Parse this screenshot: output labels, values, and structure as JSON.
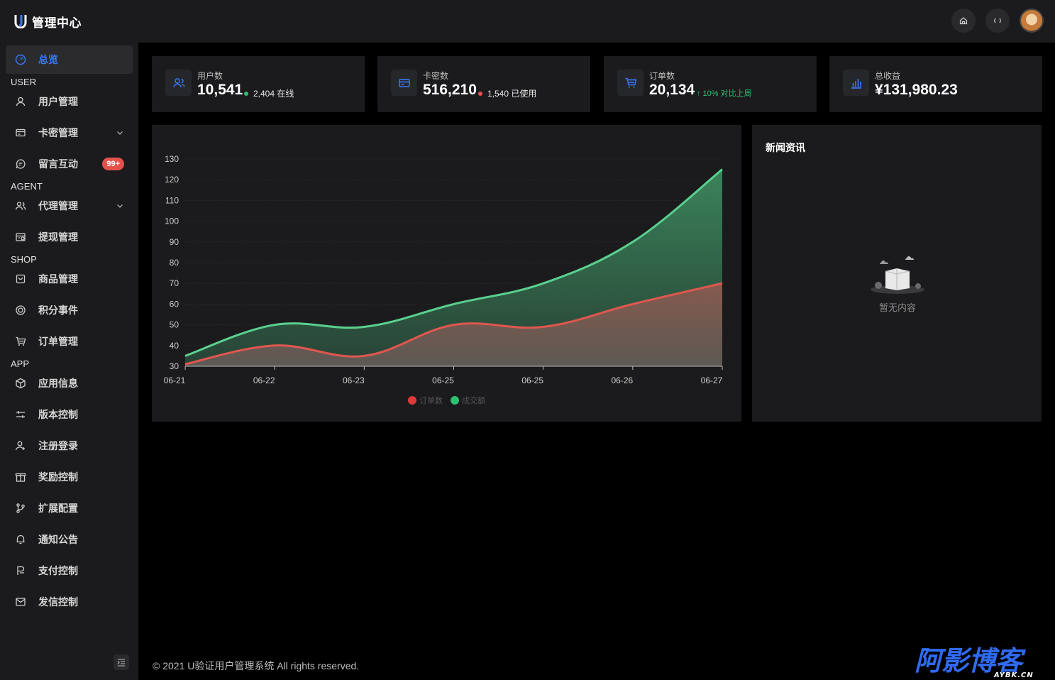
{
  "header": {
    "app_title": "管理中心",
    "logo_icon": "u-logo-icon",
    "home_icon": "home-icon",
    "refresh_icon": "refresh-icon"
  },
  "sidebar": {
    "items": [
      {
        "label": "总览",
        "icon": "dashboard-icon",
        "active": true
      },
      {
        "label": "用户管理",
        "icon": "user-icon"
      },
      {
        "label": "卡密管理",
        "icon": "card-icon",
        "expandable": true
      },
      {
        "label": "留言互动",
        "icon": "chat-icon",
        "badge": "99+"
      },
      {
        "label": "代理管理",
        "icon": "team-icon",
        "expandable": true
      },
      {
        "label": "提现管理",
        "icon": "withdraw-icon"
      },
      {
        "label": "商品管理",
        "icon": "shopping-bag-icon"
      },
      {
        "label": "积分事件",
        "icon": "points-icon"
      },
      {
        "label": "订单管理",
        "icon": "cart-icon"
      },
      {
        "label": "应用信息",
        "icon": "cube-icon"
      },
      {
        "label": "版本控制",
        "icon": "sliders-icon"
      },
      {
        "label": "注册登录",
        "icon": "user-add-icon"
      },
      {
        "label": "奖励控制",
        "icon": "gift-icon"
      },
      {
        "label": "扩展配置",
        "icon": "branch-icon"
      },
      {
        "label": "通知公告",
        "icon": "bell-icon"
      },
      {
        "label": "支付控制",
        "icon": "payment-icon"
      },
      {
        "label": "发信控制",
        "icon": "mail-icon"
      }
    ],
    "groups": [
      "USER",
      "AGENT",
      "SHOP",
      "APP"
    ]
  },
  "stats": [
    {
      "label": "用户数",
      "value": "10,541",
      "sub": "2,404 在线",
      "dot_color": "#2fbf71"
    },
    {
      "label": "卡密数",
      "value": "516,210",
      "sub": "1,540 已使用",
      "dot_color": "#e4514b"
    },
    {
      "label": "订单数",
      "value": "20,134",
      "sub": "↑ 10% 对比上周",
      "sub_color": "#2fbf71"
    },
    {
      "label": "总收益",
      "value": "¥131,980.23"
    }
  ],
  "news": {
    "title": "新闻资讯",
    "empty_text": "暂无内容"
  },
  "footer": {
    "text": "© 2021 U验证用户管理系统 All rights reserved."
  },
  "watermark": {
    "text": "阿影博客",
    "sub": "AYBK.CN"
  },
  "colors": {
    "accent": "#3a7bfd",
    "green": "#5ad08f",
    "red": "#e0574f",
    "badge": "#e4514b"
  },
  "chart_data": {
    "type": "area",
    "categories": [
      "06-21",
      "06-22",
      "06-23",
      "06-25",
      "06-25",
      "06-26",
      "06-27"
    ],
    "series": [
      {
        "name": "订单数",
        "values": [
          31,
          40,
          35,
          50,
          49,
          60,
          70
        ],
        "color": "#e0574f"
      },
      {
        "name": "成交额",
        "values": [
          35,
          50,
          49,
          60,
          70,
          90,
          125
        ],
        "color": "#5ad08f"
      }
    ],
    "yticks": [
      30,
      40,
      50,
      60,
      70,
      80,
      90,
      100,
      110,
      120,
      130
    ],
    "ylim": [
      30,
      130
    ],
    "legend": "bottom-center",
    "grid": true
  }
}
